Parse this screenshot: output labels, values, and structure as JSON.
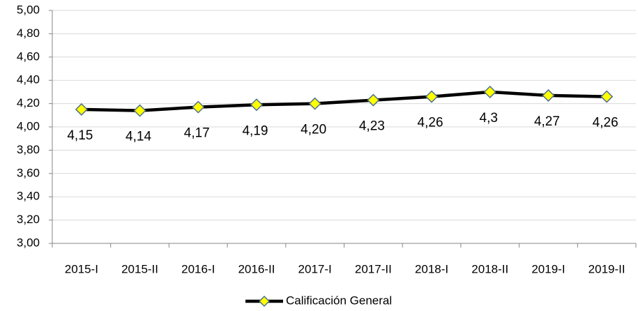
{
  "chart_data": {
    "type": "line",
    "categories": [
      "2015-I",
      "2015-II",
      "2016-I",
      "2016-II",
      "2017-I",
      "2017-II",
      "2018-I",
      "2018-II",
      "2019-I",
      "2019-II"
    ],
    "series": [
      {
        "name": "Calificación General",
        "color": "#000000",
        "marker_color": "#ffff00",
        "values": [
          4.15,
          4.14,
          4.17,
          4.19,
          4.2,
          4.23,
          4.26,
          4.3,
          4.27,
          4.26
        ],
        "value_labels": [
          "4,15",
          "4,14",
          "4,17",
          "4,19",
          "4,20",
          "4,23",
          "4,26",
          "4,3",
          "4,27",
          "4,26"
        ]
      }
    ],
    "ylim": [
      3,
      5
    ],
    "yticks": [
      {
        "value": 3,
        "label": "3,00"
      },
      {
        "value": 3.2,
        "label": "3,20"
      },
      {
        "value": 3.4,
        "label": "3,40"
      },
      {
        "value": 3.6,
        "label": "3,60"
      },
      {
        "value": 3.8,
        "label": "3,80"
      },
      {
        "value": 4,
        "label": "4,00"
      },
      {
        "value": 4.2,
        "label": "4,20"
      },
      {
        "value": 4.4,
        "label": "4,40"
      },
      {
        "value": 4.6,
        "label": "4,60"
      },
      {
        "value": 4.8,
        "label": "4,80"
      },
      {
        "value": 5,
        "label": "5,00"
      }
    ],
    "grid": true,
    "legend": "bottom"
  }
}
